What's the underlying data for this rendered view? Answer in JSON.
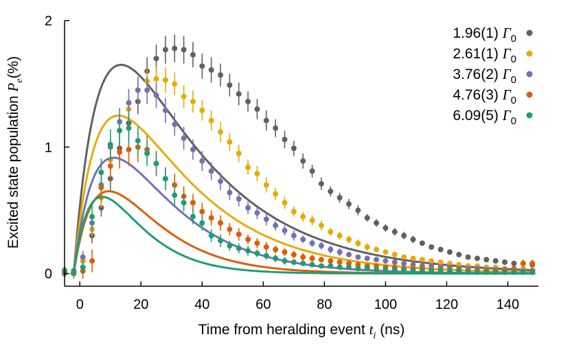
{
  "chart_data": {
    "type": "scatter",
    "xlabel": {
      "prefix": "Time from heralding event ",
      "symbol": "t",
      "subscript": "i",
      "suffix": " (ns)"
    },
    "ylabel": {
      "prefix": "Excited state population ",
      "symbol": "P",
      "subscript": "e",
      "suffix": "(%)"
    },
    "xlim": [
      -5,
      150
    ],
    "ylim": [
      -0.1,
      2.0
    ],
    "xticks": [
      0,
      20,
      40,
      60,
      80,
      100,
      120,
      140
    ],
    "yticks": [
      0,
      1,
      2
    ],
    "grid": false,
    "legend_position": "top-right",
    "series": [
      {
        "name": "1.96(1) Γ0",
        "rate": "1.96(1)",
        "unit_symbol": "Γ",
        "unit_sub": "0",
        "color": "#606060",
        "x": [
          -5,
          -2,
          1,
          4,
          7,
          10,
          13,
          16,
          19,
          22,
          25,
          28,
          31,
          34,
          37,
          40,
          43,
          46,
          49,
          52,
          55,
          58,
          61,
          64,
          67,
          70,
          73,
          76,
          79,
          82,
          85,
          88,
          91,
          94,
          97,
          100,
          103,
          106,
          109,
          112,
          115,
          118,
          121,
          124,
          127,
          130,
          133,
          136,
          139,
          142,
          145,
          148
        ],
        "y": [
          0.0,
          0.02,
          0.1,
          0.3,
          0.52,
          0.75,
          0.99,
          1.19,
          1.36,
          1.6,
          1.7,
          1.77,
          1.78,
          1.77,
          1.73,
          1.64,
          1.61,
          1.57,
          1.49,
          1.42,
          1.36,
          1.3,
          1.21,
          1.15,
          1.06,
          0.99,
          0.89,
          0.81,
          0.71,
          0.65,
          0.6,
          0.55,
          0.5,
          0.44,
          0.4,
          0.36,
          0.33,
          0.3,
          0.27,
          0.24,
          0.21,
          0.19,
          0.17,
          0.15,
          0.13,
          0.12,
          0.11,
          0.1,
          0.09,
          0.08,
          0.08,
          0.07
        ],
        "err": [
          0.02,
          0.03,
          0.04,
          0.06,
          0.07,
          0.09,
          0.1,
          0.1,
          0.1,
          0.11,
          0.11,
          0.11,
          0.11,
          0.11,
          0.1,
          0.1,
          0.1,
          0.09,
          0.09,
          0.09,
          0.08,
          0.08,
          0.08,
          0.07,
          0.07,
          0.06,
          0.06,
          0.05,
          0.05,
          0.04,
          0.04,
          0.04,
          0.04,
          0.03,
          0.03,
          0.03,
          0.03,
          0.03,
          0.03,
          0.02,
          0.02,
          0.02,
          0.02,
          0.02,
          0.02,
          0.02,
          0.02,
          0.02,
          0.02,
          0.02,
          0.02,
          0.02
        ],
        "fit": {
          "A": 3.95,
          "tau1": 30.0,
          "tau2": 9.0,
          "t0": -2.0
        }
      },
      {
        "name": "2.61(1) Γ0",
        "rate": "2.61(1)",
        "unit_symbol": "Γ",
        "unit_sub": "0",
        "color": "#e6ab02",
        "x": [
          -5,
          -2,
          1,
          4,
          7,
          10,
          13,
          16,
          19,
          22,
          25,
          28,
          31,
          34,
          37,
          40,
          43,
          46,
          49,
          52,
          55,
          58,
          61,
          64,
          67,
          70,
          73,
          76,
          79,
          82,
          85,
          88,
          91,
          94,
          97,
          100,
          103,
          106,
          109,
          112,
          115,
          118,
          121,
          124,
          127,
          130,
          133,
          136,
          139,
          142,
          145,
          148
        ],
        "y": [
          0.03,
          0.0,
          0.1,
          0.35,
          0.6,
          0.9,
          1.13,
          1.3,
          1.45,
          1.52,
          1.54,
          1.53,
          1.5,
          1.4,
          1.36,
          1.29,
          1.21,
          1.12,
          1.04,
          0.95,
          0.84,
          0.79,
          0.7,
          0.63,
          0.56,
          0.49,
          0.45,
          0.42,
          0.38,
          0.33,
          0.3,
          0.27,
          0.24,
          0.21,
          0.19,
          0.17,
          0.15,
          0.13,
          0.12,
          0.11,
          0.1,
          0.09,
          0.08,
          0.07,
          0.06,
          0.06,
          0.05,
          0.05,
          0.04,
          0.04,
          0.04,
          0.03
        ],
        "err": [
          0.03,
          0.03,
          0.05,
          0.06,
          0.08,
          0.09,
          0.1,
          0.1,
          0.1,
          0.1,
          0.1,
          0.1,
          0.09,
          0.09,
          0.09,
          0.08,
          0.08,
          0.08,
          0.07,
          0.07,
          0.06,
          0.06,
          0.06,
          0.05,
          0.05,
          0.04,
          0.04,
          0.04,
          0.04,
          0.03,
          0.03,
          0.03,
          0.03,
          0.03,
          0.02,
          0.02,
          0.02,
          0.02,
          0.02,
          0.02,
          0.02,
          0.02,
          0.02,
          0.02,
          0.02,
          0.02,
          0.02,
          0.02,
          0.02,
          0.02,
          0.02,
          0.02
        ],
        "fit": {
          "A": 3.35,
          "tau1": 26.0,
          "tau2": 9.0,
          "t0": -2.0
        }
      },
      {
        "name": "3.76(2) Γ0",
        "rate": "3.76(2)",
        "unit_symbol": "Γ",
        "unit_sub": "0",
        "color": "#7570b3",
        "x": [
          -5,
          -2,
          1,
          4,
          7,
          10,
          13,
          16,
          19,
          22,
          25,
          28,
          31,
          34,
          37,
          40,
          43,
          46,
          49,
          52,
          55,
          58,
          61,
          64,
          67,
          70,
          73,
          76,
          79,
          82,
          85,
          88,
          91,
          94,
          97,
          100,
          103,
          106,
          109,
          112,
          115,
          118,
          121,
          124,
          127,
          130,
          133,
          136,
          139,
          142,
          145,
          148
        ],
        "y": [
          0.0,
          0.01,
          0.13,
          0.4,
          0.7,
          1.0,
          1.2,
          1.35,
          1.45,
          1.45,
          1.41,
          1.29,
          1.18,
          1.07,
          0.98,
          0.89,
          0.81,
          0.73,
          0.64,
          0.59,
          0.52,
          0.48,
          0.43,
          0.38,
          0.34,
          0.3,
          0.27,
          0.24,
          0.22,
          0.19,
          0.17,
          0.15,
          0.13,
          0.12,
          0.11,
          0.1,
          0.09,
          0.08,
          0.07,
          0.06,
          0.06,
          0.05,
          0.05,
          0.04,
          0.04,
          0.04,
          0.03,
          0.03,
          0.03,
          0.03,
          0.02,
          0.02
        ],
        "err": [
          0.03,
          0.03,
          0.05,
          0.07,
          0.09,
          0.1,
          0.11,
          0.11,
          0.11,
          0.11,
          0.1,
          0.1,
          0.09,
          0.09,
          0.08,
          0.08,
          0.07,
          0.07,
          0.06,
          0.06,
          0.05,
          0.05,
          0.05,
          0.04,
          0.04,
          0.04,
          0.03,
          0.03,
          0.03,
          0.03,
          0.03,
          0.02,
          0.02,
          0.02,
          0.02,
          0.02,
          0.02,
          0.02,
          0.02,
          0.02,
          0.02,
          0.02,
          0.02,
          0.02,
          0.02,
          0.02,
          0.02,
          0.02,
          0.02,
          0.02,
          0.02,
          0.02
        ],
        "fit": {
          "A": 3.2,
          "tau1": 20.0,
          "tau2": 9.0,
          "t0": -2.0
        }
      },
      {
        "name": "4.76(3) Γ0",
        "rate": "4.76(3)",
        "unit_symbol": "Γ",
        "unit_sub": "0",
        "color": "#d95f02",
        "x": [
          -5,
          -2,
          1,
          4,
          7,
          10,
          13,
          16,
          19,
          22,
          25,
          28,
          31,
          34,
          37,
          40,
          43,
          46,
          49,
          52,
          55,
          58,
          61,
          64,
          67,
          70,
          73,
          76,
          79,
          82,
          85,
          88,
          91,
          94,
          97,
          100,
          103,
          106,
          109,
          112,
          115,
          118,
          121,
          124,
          127,
          130,
          133,
          136,
          139,
          142,
          145,
          148
        ],
        "y": [
          0.01,
          0.0,
          0.02,
          0.1,
          0.68,
          0.85,
          0.96,
          0.98,
          1.0,
          0.98,
          0.87,
          0.75,
          0.7,
          0.61,
          0.56,
          0.49,
          0.44,
          0.4,
          0.35,
          0.31,
          0.27,
          0.24,
          0.21,
          0.19,
          0.17,
          0.15,
          0.13,
          0.12,
          0.11,
          0.1,
          0.09,
          0.08,
          0.07,
          0.06,
          0.06,
          0.05,
          0.05,
          0.04,
          0.04,
          0.04,
          0.03,
          0.03,
          0.03,
          0.03,
          0.02,
          0.02,
          0.02,
          0.02,
          0.02,
          0.04,
          0.08,
          0.08
        ],
        "err": [
          0.03,
          0.04,
          0.06,
          0.09,
          0.12,
          0.13,
          0.13,
          0.13,
          0.12,
          0.11,
          0.1,
          0.09,
          0.09,
          0.08,
          0.07,
          0.07,
          0.06,
          0.06,
          0.05,
          0.05,
          0.04,
          0.04,
          0.04,
          0.03,
          0.03,
          0.03,
          0.03,
          0.03,
          0.02,
          0.02,
          0.02,
          0.02,
          0.02,
          0.02,
          0.02,
          0.02,
          0.02,
          0.02,
          0.02,
          0.02,
          0.02,
          0.02,
          0.02,
          0.02,
          0.02,
          0.02,
          0.02,
          0.02,
          0.02,
          0.02,
          0.03,
          0.03
        ],
        "fit": {
          "A": 3.5,
          "tau1": 15.0,
          "tau2": 9.0,
          "t0": -2.0
        }
      },
      {
        "name": "6.09(5) Γ0",
        "rate": "6.09(5)",
        "unit_symbol": "Γ",
        "unit_sub": "0",
        "color": "#1b9e77",
        "x": [
          -5,
          -2,
          1,
          4,
          7,
          10,
          13,
          16,
          19,
          22,
          25,
          28,
          31,
          34,
          37,
          40,
          43,
          46,
          49,
          52,
          55,
          58,
          61,
          64,
          67,
          70,
          73,
          76,
          79,
          82,
          85,
          88,
          91,
          94,
          97,
          100,
          103,
          106,
          109,
          112,
          115,
          118,
          121,
          124,
          127,
          130,
          133,
          136,
          139,
          142,
          145,
          148
        ],
        "y": [
          0.02,
          0.01,
          0.05,
          0.45,
          0.8,
          1.02,
          1.13,
          1.15,
          1.05,
          0.95,
          0.87,
          0.75,
          0.62,
          0.56,
          0.45,
          0.4,
          0.3,
          0.26,
          0.22,
          0.2,
          0.18,
          0.16,
          0.14,
          0.12,
          0.1,
          0.09,
          0.08,
          0.07,
          0.06,
          0.06,
          0.05,
          0.05,
          0.04,
          0.04,
          0.03,
          0.03,
          0.03,
          0.03,
          0.02,
          0.02,
          0.02,
          0.02,
          0.02,
          0.02,
          0.01,
          0.01,
          0.01,
          0.01,
          0.01,
          0.01,
          0.01,
          0.01
        ],
        "err": [
          0.03,
          0.04,
          0.06,
          0.09,
          0.11,
          0.12,
          0.12,
          0.12,
          0.11,
          0.1,
          0.09,
          0.09,
          0.08,
          0.07,
          0.06,
          0.06,
          0.05,
          0.05,
          0.04,
          0.04,
          0.04,
          0.03,
          0.03,
          0.03,
          0.03,
          0.02,
          0.02,
          0.02,
          0.02,
          0.02,
          0.02,
          0.02,
          0.02,
          0.02,
          0.02,
          0.02,
          0.02,
          0.02,
          0.02,
          0.02,
          0.02,
          0.02,
          0.02,
          0.02,
          0.02,
          0.02,
          0.02,
          0.02,
          0.02,
          0.02,
          0.02,
          0.02
        ],
        "fit": {
          "A": 5.2,
          "tau1": 11.0,
          "tau2": 8.0,
          "t0": -2.0
        }
      }
    ]
  }
}
